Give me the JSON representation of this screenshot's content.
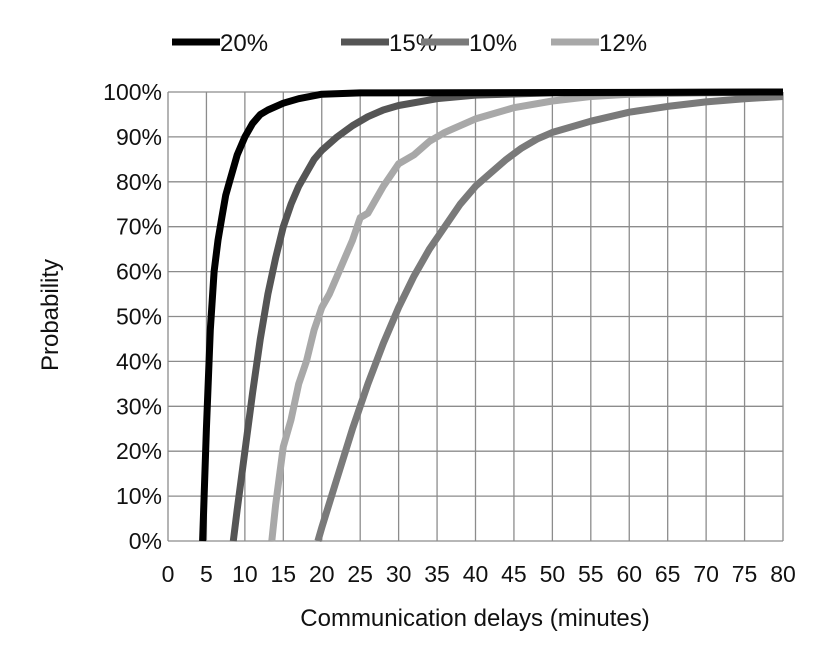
{
  "chart_data": {
    "type": "line",
    "title": "",
    "xlabel": "Communication delays (minutes)",
    "ylabel": "Probability",
    "xlim": [
      0,
      80
    ],
    "ylim": [
      0,
      100
    ],
    "x_ticks": [
      0,
      5,
      10,
      15,
      20,
      25,
      30,
      35,
      40,
      45,
      50,
      55,
      60,
      65,
      70,
      75,
      80
    ],
    "y_ticks": [
      0,
      10,
      20,
      30,
      40,
      50,
      60,
      70,
      80,
      90,
      100
    ],
    "y_tick_labels": [
      "0%",
      "10%",
      "20%",
      "30%",
      "40%",
      "50%",
      "60%",
      "70%",
      "80%",
      "90%",
      "100%"
    ],
    "grid": true,
    "legend_position": "top",
    "series": [
      {
        "name": "20%",
        "color": "#000000",
        "x": [
          4.5,
          5,
          5.5,
          6,
          6.5,
          7,
          7.5,
          8,
          9,
          10,
          11,
          12,
          13,
          15,
          17,
          20,
          25,
          80
        ],
        "y": [
          0,
          25,
          47,
          60,
          67,
          72,
          77,
          80,
          86,
          90,
          93,
          95,
          96,
          97.5,
          98.5,
          99.5,
          99.8,
          100
        ]
      },
      {
        "name": "15%",
        "color": "#555555",
        "x": [
          8.5,
          9,
          10,
          11,
          12,
          13,
          14,
          15,
          16,
          17,
          18,
          19,
          20,
          22,
          24,
          26,
          28,
          30,
          35,
          40,
          50,
          80
        ],
        "y": [
          0,
          7,
          20,
          33,
          45,
          55,
          63,
          70,
          75,
          79,
          82,
          85,
          87,
          90,
          92.5,
          94.5,
          96,
          97,
          98.5,
          99.3,
          99.8,
          100
        ]
      },
      {
        "name": "10%",
        "color": "#7a7a7a",
        "x": [
          19.5,
          20,
          22,
          24,
          26,
          28,
          30,
          32,
          34,
          36,
          38,
          40,
          42,
          44,
          46,
          48,
          50,
          55,
          60,
          65,
          70,
          75,
          80
        ],
        "y": [
          0,
          3,
          14,
          25,
          35,
          44,
          52,
          59,
          65,
          70,
          75,
          79,
          82,
          85,
          87.5,
          89.5,
          91,
          93.5,
          95.5,
          96.8,
          97.8,
          98.5,
          99
        ]
      },
      {
        "name": "12%",
        "color": "#a8a8a8",
        "x": [
          13.5,
          14,
          15,
          16,
          17,
          18,
          19,
          20,
          21,
          22,
          23,
          24,
          25,
          26,
          27,
          28,
          30,
          32,
          34,
          36,
          38,
          40,
          45,
          50,
          55,
          60,
          70,
          80
        ],
        "y": [
          0,
          8,
          21,
          27,
          35,
          40,
          47,
          52,
          55,
          59,
          63,
          67,
          72,
          73,
          76,
          79,
          84,
          86,
          89,
          91,
          92.5,
          94,
          96.5,
          98,
          99,
          99.5,
          99.8,
          100
        ]
      }
    ]
  }
}
